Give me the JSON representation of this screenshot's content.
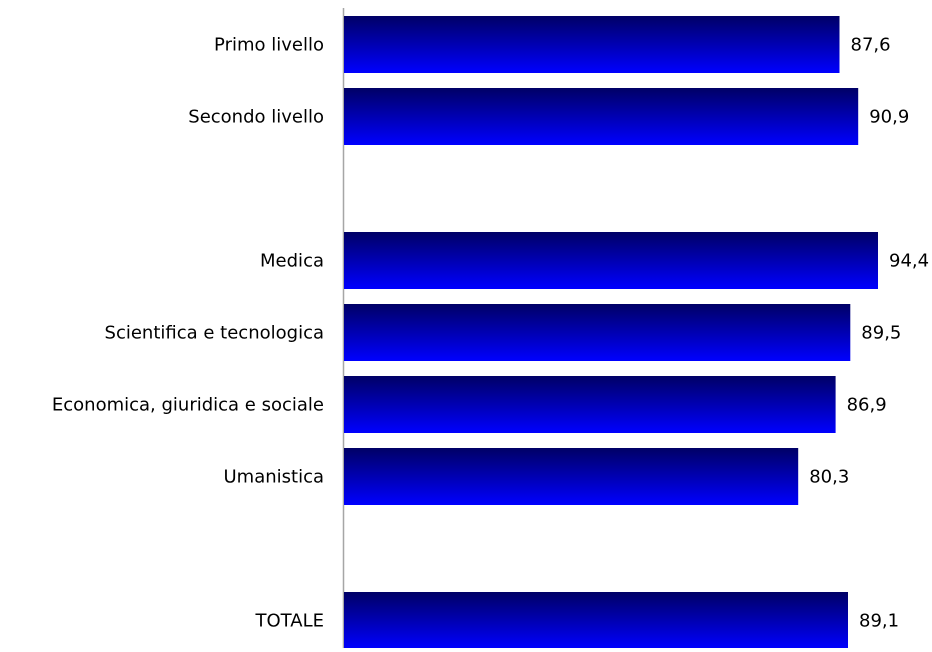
{
  "chart_data": {
    "type": "bar",
    "orientation": "horizontal",
    "categories": [
      "Primo livello",
      "Secondo livello",
      "",
      "Medica",
      "Scientifica e tecnologica",
      "Economica, giuridica e sociale",
      "Umanistica",
      "",
      "TOTALE"
    ],
    "values": [
      87.6,
      90.9,
      null,
      94.4,
      89.5,
      86.9,
      80.3,
      null,
      89.1
    ],
    "data_labels": [
      "87,6",
      "90,9",
      "",
      "94,4",
      "89,5",
      "86,9",
      "80,3",
      "",
      "89,1"
    ],
    "title": "",
    "xlabel": "",
    "ylabel": "",
    "xlim": [
      0,
      94.4
    ],
    "grid": false,
    "legend": "none",
    "colors": {
      "bar_dark": "#000066",
      "bar_light": "#0000ff",
      "axis": "#a6a6a6"
    }
  }
}
